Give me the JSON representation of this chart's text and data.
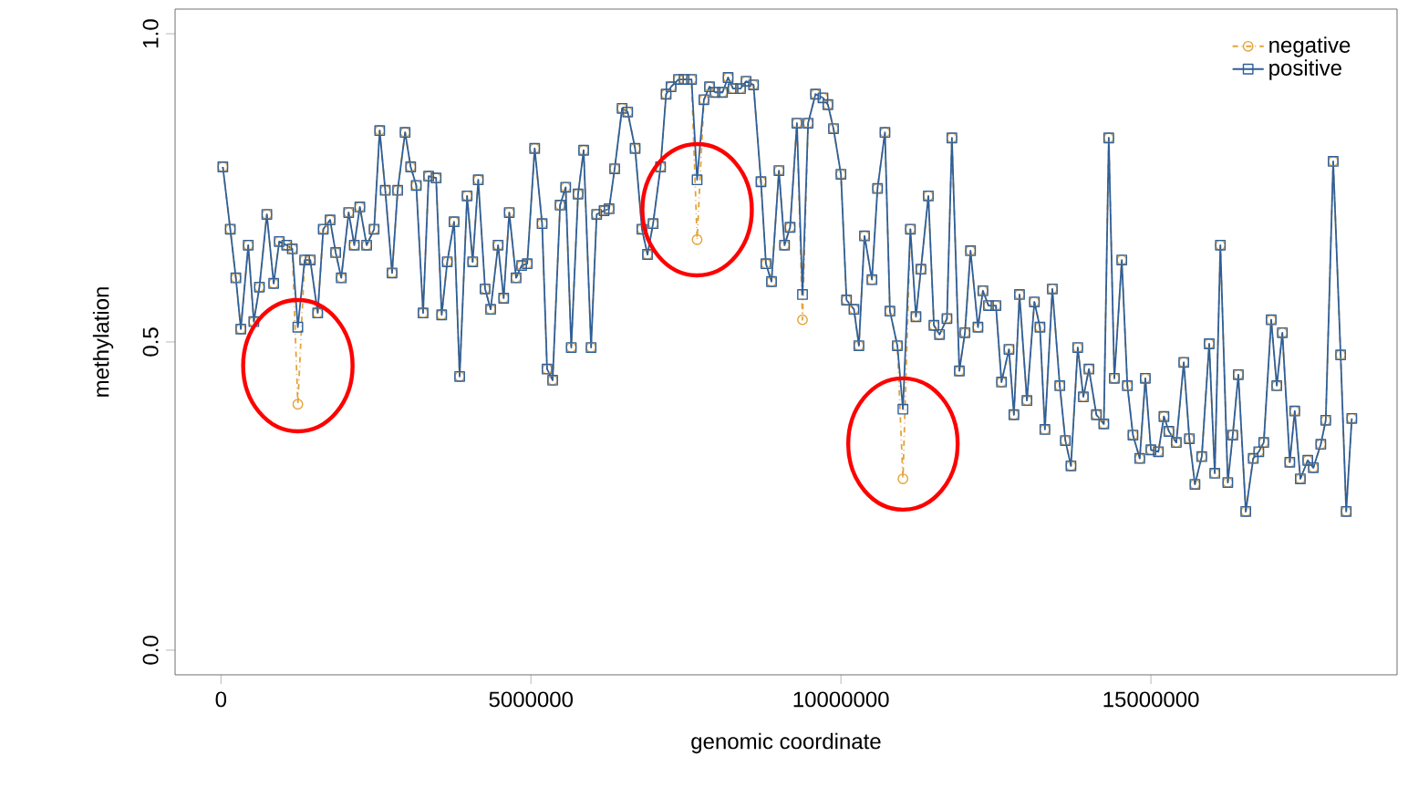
{
  "chart_data": {
    "type": "line",
    "xlabel": "genomic coordinate",
    "ylabel": "methylation",
    "xlim": [
      -740000,
      18970000
    ],
    "ylim": [
      -0.04,
      1.04
    ],
    "xticks": [
      0,
      5000000,
      10000000,
      15000000
    ],
    "yticks": [
      {
        "value": 0,
        "label": "0.0"
      },
      {
        "value": 0.5,
        "label": "0.5"
      },
      {
        "value": 1,
        "label": "1.0"
      }
    ],
    "grid": false,
    "legend": "top right",
    "x": [
      30000,
      150000,
      240000,
      320000,
      440000,
      530000,
      620000,
      740000,
      850000,
      940000,
      1060000,
      1150000,
      1240000,
      1350000,
      1440000,
      1560000,
      1650000,
      1760000,
      1850000,
      1940000,
      2060000,
      2150000,
      2240000,
      2350000,
      2470000,
      2560000,
      2650000,
      2760000,
      2850000,
      2970000,
      3060000,
      3150000,
      3260000,
      3350000,
      3470000,
      3560000,
      3650000,
      3760000,
      3850000,
      3970000,
      4060000,
      4150000,
      4260000,
      4350000,
      4470000,
      4560000,
      4650000,
      4760000,
      4850000,
      4940000,
      5060000,
      5180000,
      5260000,
      5350000,
      5470000,
      5560000,
      5650000,
      5760000,
      5850000,
      5970000,
      6060000,
      6180000,
      6260000,
      6350000,
      6470000,
      6560000,
      6680000,
      6790000,
      6880000,
      6970000,
      7090000,
      7180000,
      7260000,
      7380000,
      7470000,
      7590000,
      7680000,
      7790000,
      7880000,
      7970000,
      8090000,
      8180000,
      8260000,
      8380000,
      8470000,
      8590000,
      8710000,
      8790000,
      8880000,
      9000000,
      9090000,
      9180000,
      9290000,
      9380000,
      9470000,
      9590000,
      9710000,
      9790000,
      9880000,
      10000000,
      10090000,
      10210000,
      10290000,
      10380000,
      10500000,
      10590000,
      10710000,
      10790000,
      10910000,
      11000000,
      11120000,
      11210000,
      11290000,
      11410000,
      11500000,
      11590000,
      11710000,
      11790000,
      11910000,
      12000000,
      12090000,
      12210000,
      12290000,
      12380000,
      12500000,
      12590000,
      12710000,
      12790000,
      12880000,
      13000000,
      13120000,
      13210000,
      13290000,
      13410000,
      13530000,
      13620000,
      13710000,
      13820000,
      13910000,
      14000000,
      14120000,
      14240000,
      14320000,
      14410000,
      14530000,
      14620000,
      14710000,
      14820000,
      14910000,
      15000000,
      15120000,
      15210000,
      15290000,
      15410000,
      15530000,
      15620000,
      15710000,
      15820000,
      15940000,
      16030000,
      16120000,
      16240000,
      16320000,
      16410000,
      16530000,
      16650000,
      16740000,
      16820000,
      16940000,
      17030000,
      17120000,
      17240000,
      17320000,
      17410000,
      17530000,
      17620000,
      17740000,
      17820000,
      17940000,
      18060000,
      18150000,
      18240000
    ],
    "series": [
      {
        "name": "negative",
        "color": "#e3a33a",
        "marker": "circle",
        "line_style": "dashed",
        "values": [
          0.784,
          0.683,
          0.604,
          0.521,
          0.657,
          0.533,
          0.589,
          0.707,
          0.595,
          0.663,
          0.657,
          0.651,
          0.399,
          0.633,
          0.633,
          0.547,
          0.683,
          0.698,
          0.645,
          0.604,
          0.71,
          0.657,
          0.719,
          0.657,
          0.683,
          0.843,
          0.746,
          0.612,
          0.746,
          0.84,
          0.784,
          0.754,
          0.547,
          0.769,
          0.766,
          0.544,
          0.63,
          0.695,
          0.444,
          0.737,
          0.63,
          0.763,
          0.586,
          0.553,
          0.657,
          0.571,
          0.71,
          0.604,
          0.624,
          0.627,
          0.814,
          0.692,
          0.456,
          0.438,
          0.722,
          0.751,
          0.491,
          0.74,
          0.811,
          0.491,
          0.707,
          0.713,
          0.716,
          0.781,
          0.879,
          0.873,
          0.814,
          0.683,
          0.642,
          0.692,
          0.784,
          0.902,
          0.914,
          0.926,
          0.926,
          0.926,
          0.666,
          0.893,
          0.914,
          0.905,
          0.905,
          0.929,
          0.911,
          0.911,
          0.923,
          0.917,
          0.76,
          0.627,
          0.598,
          0.778,
          0.657,
          0.686,
          0.855,
          0.536,
          0.855,
          0.902,
          0.896,
          0.885,
          0.846,
          0.772,
          0.568,
          0.553,
          0.494,
          0.672,
          0.601,
          0.749,
          0.84,
          0.55,
          0.494,
          0.278,
          0.683,
          0.541,
          0.618,
          0.737,
          0.527,
          0.512,
          0.538,
          0.831,
          0.453,
          0.515,
          0.648,
          0.524,
          0.583,
          0.559,
          0.559,
          0.435,
          0.488,
          0.382,
          0.577,
          0.405,
          0.565,
          0.524,
          0.358,
          0.586,
          0.429,
          0.34,
          0.299,
          0.491,
          0.411,
          0.456,
          0.382,
          0.367,
          0.831,
          0.441,
          0.633,
          0.429,
          0.349,
          0.311,
          0.441,
          0.325,
          0.322,
          0.379,
          0.355,
          0.337,
          0.467,
          0.343,
          0.269,
          0.314,
          0.497,
          0.287,
          0.657,
          0.272,
          0.349,
          0.447,
          0.225,
          0.311,
          0.322,
          0.337,
          0.536,
          0.429,
          0.515,
          0.305,
          0.388,
          0.278,
          0.308,
          0.296,
          0.334,
          0.373,
          0.793,
          0.479,
          0.225,
          0.376
        ]
      },
      {
        "name": "positive",
        "color": "#2e5f9a",
        "marker": "square",
        "line_style": "solid",
        "values": [
          0.784,
          0.683,
          0.604,
          0.521,
          0.657,
          0.533,
          0.589,
          0.707,
          0.595,
          0.663,
          0.657,
          0.651,
          0.524,
          0.633,
          0.633,
          0.547,
          0.683,
          0.698,
          0.645,
          0.604,
          0.71,
          0.657,
          0.719,
          0.657,
          0.683,
          0.843,
          0.746,
          0.612,
          0.746,
          0.84,
          0.784,
          0.754,
          0.547,
          0.769,
          0.766,
          0.544,
          0.63,
          0.695,
          0.444,
          0.737,
          0.63,
          0.763,
          0.586,
          0.553,
          0.657,
          0.571,
          0.71,
          0.604,
          0.624,
          0.627,
          0.814,
          0.692,
          0.456,
          0.438,
          0.722,
          0.751,
          0.491,
          0.74,
          0.811,
          0.491,
          0.707,
          0.713,
          0.716,
          0.781,
          0.879,
          0.873,
          0.814,
          0.683,
          0.642,
          0.692,
          0.784,
          0.902,
          0.914,
          0.926,
          0.926,
          0.926,
          0.763,
          0.893,
          0.914,
          0.905,
          0.905,
          0.929,
          0.911,
          0.911,
          0.923,
          0.917,
          0.76,
          0.627,
          0.598,
          0.778,
          0.657,
          0.686,
          0.855,
          0.577,
          0.855,
          0.902,
          0.896,
          0.885,
          0.846,
          0.772,
          0.568,
          0.553,
          0.494,
          0.672,
          0.601,
          0.749,
          0.84,
          0.55,
          0.494,
          0.391,
          0.683,
          0.541,
          0.618,
          0.737,
          0.527,
          0.512,
          0.538,
          0.831,
          0.453,
          0.515,
          0.648,
          0.524,
          0.583,
          0.559,
          0.559,
          0.435,
          0.488,
          0.382,
          0.577,
          0.405,
          0.565,
          0.524,
          0.358,
          0.586,
          0.429,
          0.34,
          0.299,
          0.491,
          0.411,
          0.456,
          0.382,
          0.367,
          0.831,
          0.441,
          0.633,
          0.429,
          0.349,
          0.311,
          0.441,
          0.325,
          0.322,
          0.379,
          0.355,
          0.337,
          0.467,
          0.343,
          0.269,
          0.314,
          0.497,
          0.287,
          0.657,
          0.272,
          0.349,
          0.447,
          0.225,
          0.311,
          0.322,
          0.337,
          0.536,
          0.429,
          0.515,
          0.305,
          0.388,
          0.278,
          0.308,
          0.296,
          0.334,
          0.373,
          0.793,
          0.479,
          0.225,
          0.376
        ]
      }
    ]
  }
}
